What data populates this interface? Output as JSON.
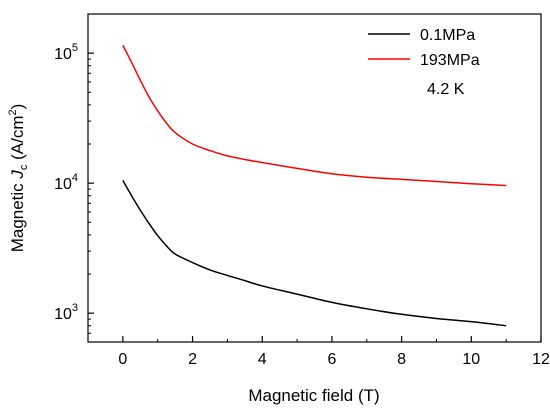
{
  "chart_data": {
    "type": "line",
    "xlabel": "Magnetic field (T)",
    "ylabel": {
      "prefix": "Magnetic ",
      "symbol": "J",
      "subscript": "c",
      "unit_open": " (A/cm",
      "unit_power": "2",
      "unit_close": ")"
    },
    "xlim": [
      -1,
      12
    ],
    "ylim": [
      600,
      200000
    ],
    "yscale": "log",
    "x_ticks": [
      0,
      2,
      4,
      6,
      8,
      10,
      12
    ],
    "y_ticks": [
      {
        "value": 1000,
        "base": "10",
        "exp": "3"
      },
      {
        "value": 10000,
        "base": "10",
        "exp": "4"
      },
      {
        "value": 100000,
        "base": "10",
        "exp": "5"
      }
    ],
    "grid": false,
    "legend_position": "top-right",
    "annotation": "4.2 K",
    "series": [
      {
        "name": "0.1MPa",
        "color": "#000000",
        "x": [
          0,
          0.25,
          0.5,
          0.75,
          1,
          1.25,
          1.5,
          2,
          2.5,
          3,
          3.5,
          4,
          5,
          6,
          7,
          8,
          9,
          10,
          11
        ],
        "y": [
          10500,
          8000,
          6200,
          4900,
          3950,
          3300,
          2850,
          2450,
          2150,
          1950,
          1780,
          1620,
          1400,
          1210,
          1080,
          980,
          910,
          860,
          800
        ]
      },
      {
        "name": "193MPa",
        "color": "#ff0000",
        "x": [
          0,
          0.25,
          0.5,
          0.75,
          1,
          1.25,
          1.5,
          2,
          2.5,
          3,
          3.5,
          4,
          5,
          6,
          7,
          8,
          9,
          10,
          11
        ],
        "y": [
          115000,
          85000,
          62000,
          46000,
          36000,
          29000,
          24500,
          20000,
          17800,
          16200,
          15200,
          14400,
          13000,
          11800,
          11100,
          10700,
          10300,
          9900,
          9600
        ]
      }
    ]
  }
}
